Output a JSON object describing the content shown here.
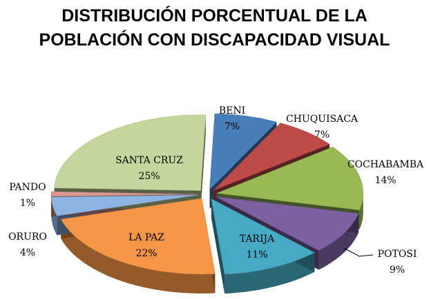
{
  "chart_data": {
    "type": "pie",
    "title": "DISTRIBUCIÓN PORCENTUAL DE LA POBLACIÓN CON DISCAPACIDAD VISUAL",
    "categories": [
      "BENI",
      "CHUQUISACA",
      "COCHABAMBA",
      "POTOSI",
      "TARIJA",
      "LA PAZ",
      "ORURO",
      "PANDO",
      "SANTA CRUZ"
    ],
    "values": [
      7,
      7,
      14,
      9,
      11,
      22,
      4,
      1,
      25
    ],
    "value_labels": [
      "7%",
      "7%",
      "14%",
      "9%",
      "11%",
      "22%",
      "4%",
      "1%",
      "25%"
    ],
    "colors": [
      "#4a7ebb",
      "#be4b48",
      "#98b954",
      "#7d60a0",
      "#46aac5",
      "#f79646",
      "#8eb4e3",
      "#d99694",
      "#c3d69b"
    ]
  }
}
